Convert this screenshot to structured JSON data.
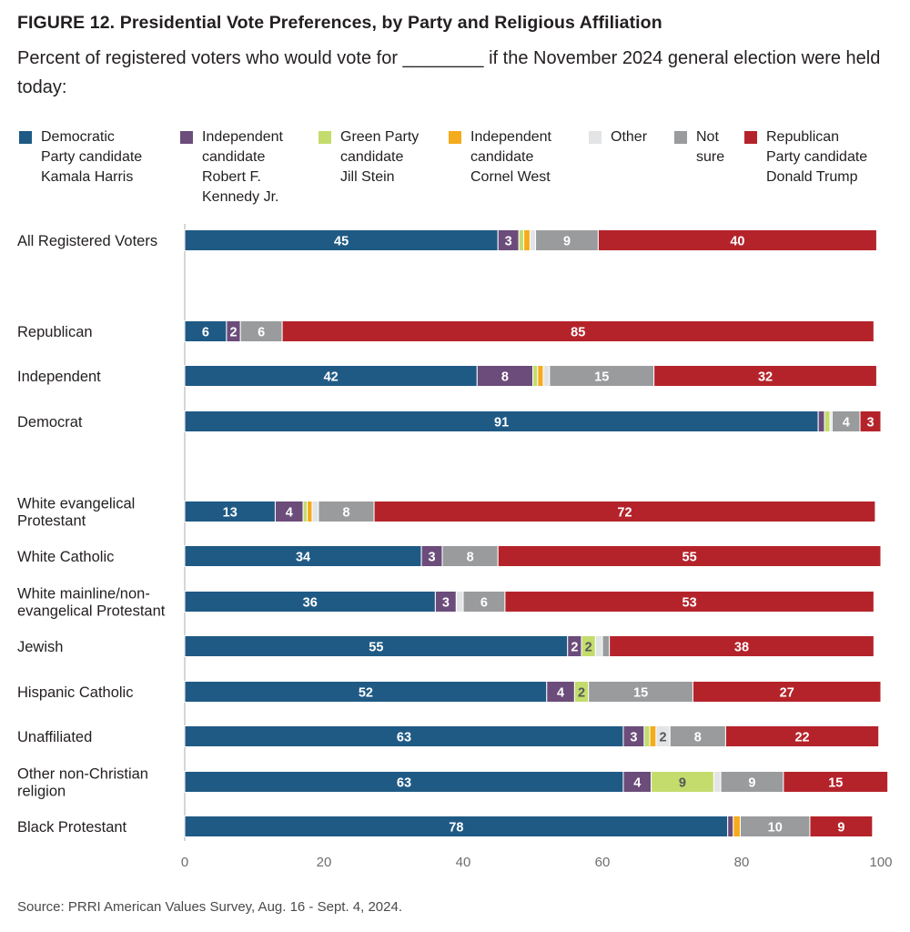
{
  "title": "FIGURE 12.  Presidential Vote Preferences, by Party and Religious Affiliation",
  "subtitle": "Percent of registered voters who would vote for ________ if the November 2024 general election were held today:",
  "source": "Source: PRRI American Values Survey, Aug. 16 - Sept. 4, 2024.",
  "chart_data": {
    "type": "bar",
    "orientation": "horizontal",
    "stacked": true,
    "xlim": [
      0,
      100
    ],
    "x_ticks": [
      0,
      20,
      40,
      60,
      80,
      100
    ],
    "grid": false,
    "legend_position": "top",
    "series": [
      {
        "name": "Democratic Party candidate Kamala Harris",
        "legend_label": "Democratic\nParty candidate\nKamala Harris",
        "color": "#1f5a85"
      },
      {
        "name": "Independent candidate Robert F. Kennedy Jr.",
        "legend_label": "Independent\ncandidate\nRobert F.\nKennedy Jr.",
        "color": "#6b4c7a"
      },
      {
        "name": "Green Party candidate Jill Stein",
        "legend_label": "Green Party\ncandidate\nJill Stein",
        "color": "#c3dc6c"
      },
      {
        "name": "Independent candidate Cornel West",
        "legend_label": "Independent\ncandidate\nCornel West",
        "color": "#f4ab1c"
      },
      {
        "name": "Other",
        "legend_label": "Other",
        "color": "#e3e4e5"
      },
      {
        "name": "Not sure",
        "legend_label": "Not\nsure",
        "color": "#9a9b9d"
      },
      {
        "name": "Republican Party candidate Donald Trump",
        "legend_label": "Republican\nParty candidate\nDonald Trump",
        "color": "#b5232a"
      }
    ],
    "rows": [
      {
        "label": "All Registered Voters",
        "values": [
          45,
          3,
          0.7,
          0.9,
          0.8,
          9,
          40
        ],
        "labels": [
          "45",
          "3",
          "",
          "",
          "",
          "9",
          "40"
        ]
      },
      {
        "label": "Republican",
        "values": [
          6,
          2,
          0,
          0,
          0,
          6,
          85
        ],
        "labels": [
          "6",
          "2",
          "",
          "",
          "",
          "6",
          "85"
        ]
      },
      {
        "label": "Independent",
        "values": [
          42,
          8,
          0.7,
          0.8,
          0.9,
          15,
          32
        ],
        "labels": [
          "42",
          "8",
          "",
          "",
          "",
          "15",
          "32"
        ]
      },
      {
        "label": "Democrat",
        "values": [
          91,
          0.9,
          0.8,
          0,
          0.3,
          4,
          3
        ],
        "labels": [
          "91",
          "",
          "",
          "",
          "",
          "4",
          "3"
        ]
      },
      {
        "label": "White evangelical\nProtestant",
        "values": [
          13,
          4,
          0.6,
          0.7,
          0.9,
          8,
          72
        ],
        "labels": [
          "13",
          "4",
          "",
          "",
          "",
          "8",
          "72"
        ]
      },
      {
        "label": "White Catholic",
        "values": [
          34,
          3,
          0,
          0,
          0,
          8,
          55
        ],
        "labels": [
          "34",
          "3",
          "",
          "",
          "",
          "8",
          "55"
        ]
      },
      {
        "label": "White mainline/non-\nevangelical Protestant",
        "values": [
          36,
          3,
          0,
          0,
          1,
          6,
          53
        ],
        "labels": [
          "36",
          "3",
          "",
          "",
          "",
          "6",
          "53"
        ]
      },
      {
        "label": "Jewish",
        "values": [
          55,
          2,
          2,
          0,
          1,
          1,
          38
        ],
        "labels": [
          "55",
          "2",
          "2",
          "",
          "",
          "",
          "38"
        ]
      },
      {
        "label": "Hispanic Catholic",
        "values": [
          52,
          4,
          2,
          0,
          0,
          15,
          27
        ],
        "labels": [
          "52",
          "4",
          "2",
          "",
          "",
          "15",
          "27"
        ]
      },
      {
        "label": "Unaffiliated",
        "values": [
          63,
          3,
          0.8,
          0.9,
          2,
          8,
          22
        ],
        "labels": [
          "63",
          "3",
          "",
          "",
          "2",
          "8",
          "22"
        ]
      },
      {
        "label": "Other non-Christian\nreligion",
        "values": [
          63,
          4,
          9,
          0,
          1,
          9,
          15
        ],
        "labels": [
          "63",
          "4",
          "9",
          "",
          "",
          "9",
          "15"
        ]
      },
      {
        "label": "Black Protestant",
        "values": [
          78,
          0.8,
          0,
          1,
          0,
          10,
          9
        ],
        "labels": [
          "78",
          "",
          "",
          "",
          "",
          "10",
          "9"
        ]
      }
    ]
  }
}
